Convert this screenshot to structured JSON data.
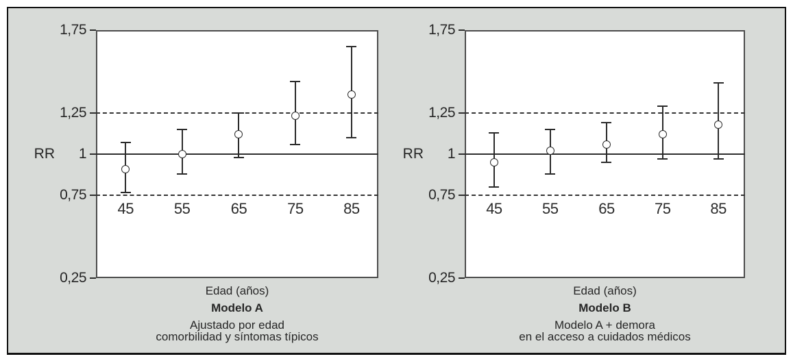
{
  "figure": {
    "background_color": "#d8dbd8",
    "frame_border_color": "#101010",
    "plot_background": "#ffffff",
    "line_color": "#2a2a2a",
    "text_color": "#262626",
    "marker_style": "open-circle"
  },
  "chart_data": [
    {
      "type": "scatter",
      "title": "Modelo A",
      "subtitle_lines": [
        "Ajustado por edad",
        "comorbilidad y síntomas típicos"
      ],
      "xlabel": "Edad (años)",
      "ylabel": "RR",
      "x": [
        45,
        55,
        65,
        75,
        85
      ],
      "y": [
        0.91,
        1.0,
        1.12,
        1.23,
        1.36
      ],
      "ci_low": [
        0.77,
        0.88,
        0.98,
        1.06,
        1.1
      ],
      "ci_high": [
        1.07,
        1.15,
        1.25,
        1.44,
        1.65
      ],
      "ylim": [
        0.25,
        1.75
      ],
      "yticks": [
        1.75,
        1.25,
        1.0,
        0.75,
        0.25
      ],
      "ytick_labels": [
        "1,75",
        "1,25",
        "1",
        "0,75",
        "0,25"
      ],
      "solid_reference_line": 1.0,
      "dashed_gridlines": [
        1.25,
        0.75
      ],
      "error_bars": true,
      "marker": "open-circle",
      "legend": "none",
      "grid": "reference-lines-only"
    },
    {
      "type": "scatter",
      "title": "Modelo B",
      "subtitle_lines": [
        "Modelo A + demora",
        "en el acceso a cuidados médicos"
      ],
      "xlabel": "Edad (años)",
      "ylabel": "RR",
      "x": [
        45,
        55,
        65,
        75,
        85
      ],
      "y": [
        0.95,
        1.02,
        1.06,
        1.12,
        1.18
      ],
      "ci_low": [
        0.8,
        0.88,
        0.95,
        0.97,
        0.97
      ],
      "ci_high": [
        1.13,
        1.15,
        1.19,
        1.29,
        1.43
      ],
      "ylim": [
        0.25,
        1.75
      ],
      "yticks": [
        1.75,
        1.25,
        1.0,
        0.75,
        0.25
      ],
      "ytick_labels": [
        "1,75",
        "1,25",
        "1",
        "0,75",
        "0,25"
      ],
      "solid_reference_line": 1.0,
      "dashed_gridlines": [
        1.25,
        0.75
      ],
      "error_bars": true,
      "marker": "open-circle",
      "legend": "none",
      "grid": "reference-lines-only"
    }
  ]
}
